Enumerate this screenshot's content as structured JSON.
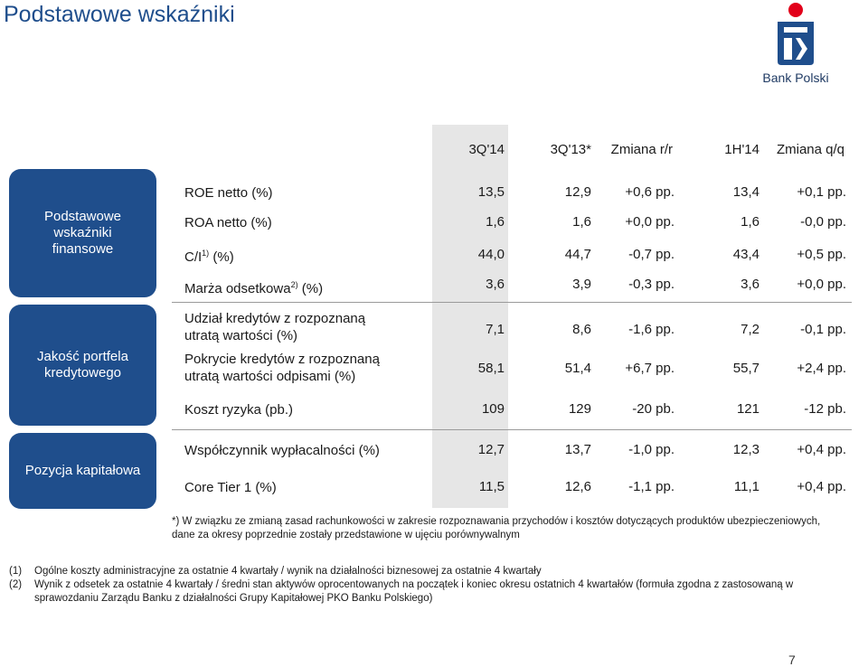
{
  "title": "Podstawowe wskaźniki",
  "logo": {
    "text": "Bank Polski",
    "icon": "pko-logo-icon",
    "brand_color": "#1f4e8c",
    "accent_color": "#e2001a"
  },
  "columns": [
    "3Q'14",
    "3Q'13*",
    "Zmiana r/r",
    "1H'14",
    "Zmiana q/q"
  ],
  "sections": [
    {
      "label": "Podstawowe wskaźniki finansowe"
    },
    {
      "label": "Jakość portfela kredytowego"
    },
    {
      "label": "Pozycja kapitałowa"
    }
  ],
  "rows": [
    {
      "label": "ROE netto (%)",
      "values": [
        "13,5",
        "12,9",
        "+0,6 pp.",
        "13,4",
        "+0,1 pp."
      ]
    },
    {
      "label": "ROA netto (%)",
      "values": [
        "1,6",
        "1,6",
        "+0,0 pp.",
        "1,6",
        "-0,0 pp."
      ]
    },
    {
      "label_pre": "C/I",
      "sup": "1)",
      "label_post": " (%)",
      "values": [
        "44,0",
        "44,7",
        "-0,7 pp.",
        "43,4",
        "+0,5 pp."
      ]
    },
    {
      "label_pre": "Marża odsetkowa",
      "sup": "2)",
      "label_post": " (%)",
      "values": [
        "3,6",
        "3,9",
        "-0,3 pp.",
        "3,6",
        "+0,0 pp."
      ]
    },
    {
      "label_line1": "Udział kredytów z rozpoznaną",
      "label_line2": "utratą wartości (%)",
      "values": [
        "7,1",
        "8,6",
        "-1,6 pp.",
        "7,2",
        "-0,1 pp."
      ]
    },
    {
      "label_line1": "Pokrycie  kredytów z rozpoznaną",
      "label_line2": "utratą wartości odpisami (%)",
      "values": [
        "58,1",
        "51,4",
        "+6,7 pp.",
        "55,7",
        "+2,4 pp."
      ]
    },
    {
      "label": "Koszt ryzyka (pb.)",
      "values": [
        "109",
        "129",
        "-20 pb.",
        "121",
        "-12 pb."
      ]
    },
    {
      "label": "Współczynnik wypłacalności (%)",
      "values": [
        "12,7",
        "13,7",
        "-1,0 pp.",
        "12,3",
        "+0,4 pp."
      ]
    },
    {
      "label": "Core Tier 1 (%)",
      "values": [
        "11,5",
        "12,6",
        "-1,1 pp.",
        "11,1",
        "+0,4 pp."
      ]
    }
  ],
  "note_line1": "*) W związku ze zmianą zasad rachunkowości w zakresie rozpoznawania przychodów i kosztów dotyczących produktów ubezpieczeniowych,",
  "note_line2": "dane za okresy poprzednie zostały przedstawione w ujęciu porównywalnym",
  "footnotes": [
    {
      "num": "(1)",
      "text": "Ogólne koszty administracyjne za ostatnie 4 kwartały / wynik na działalności biznesowej za ostatnie 4 kwartały"
    },
    {
      "num": "(2)",
      "text": "Wynik z odsetek za ostatnie 4 kwartały / średni stan aktywów oprocentowanych na początek i koniec okresu ostatnich 4 kwartałów (formuła zgodna z zastosowaną w sprawozdaniu Zarządu Banku z działalności Grupy Kapitałowej  PKO Banku Polskiego)"
    }
  ],
  "page_number": "7"
}
